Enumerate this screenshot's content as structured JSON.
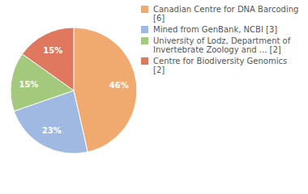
{
  "chart_data": {
    "type": "pie",
    "categories": [
      "Canadian Centre for DNA Barcoding [6]",
      "Mined from GenBank, NCBI [3]",
      "University of Lodz, Department of Invertebrate Zoology and ... [2]",
      "Centre for Biodiversity Genomics [2]"
    ],
    "values": [
      46,
      23,
      15,
      15
    ],
    "value_labels": [
      "46%",
      "23%",
      "15%",
      "15%"
    ],
    "colors": [
      "#f0a96e",
      "#a0b9e2",
      "#a3c97c",
      "#e0775f"
    ],
    "data_labels": true,
    "legend": "right"
  }
}
